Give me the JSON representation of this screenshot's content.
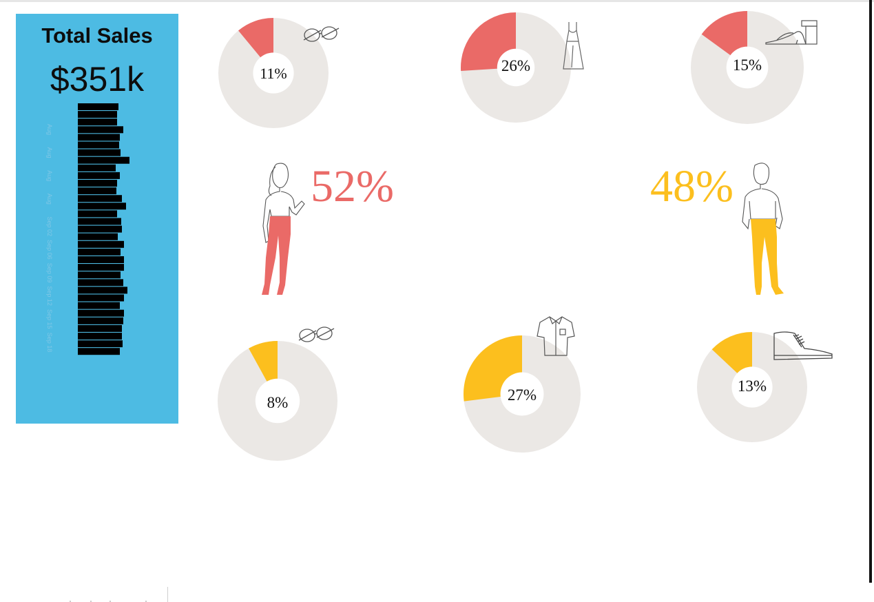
{
  "sales": {
    "title": "Total Sales",
    "value": "$351k",
    "bar_color": "#000000",
    "panel_color": "#4dbbe3"
  },
  "colors": {
    "women": "#ea6a67",
    "men": "#fcbf1e",
    "track": "#ebe8e5"
  },
  "women": {
    "share_label": "52%",
    "share": 52,
    "figure_icon": "woman-figure-icon",
    "categories": [
      {
        "name": "Glasses",
        "icon": "glasses-icon",
        "value": 11,
        "label": "11%"
      },
      {
        "name": "Dress",
        "icon": "dress-icon",
        "value": 26,
        "label": "26%"
      },
      {
        "name": "Sandal",
        "icon": "sandal-icon",
        "value": 15,
        "label": "15%"
      }
    ]
  },
  "men": {
    "share_label": "48%",
    "share": 48,
    "figure_icon": "man-figure-icon",
    "categories": [
      {
        "name": "Glasses",
        "icon": "glasses-icon",
        "value": 8,
        "label": "8%"
      },
      {
        "name": "Shirt",
        "icon": "shirt-icon",
        "value": 27,
        "label": "27%"
      },
      {
        "name": "Shoe",
        "icon": "shoe-icon",
        "value": 13,
        "label": "13%"
      }
    ]
  },
  "chart_data": [
    {
      "type": "bar",
      "orientation": "horizontal",
      "title": "Total Sales",
      "tick_labels": [
        "Aug",
        "Aug",
        "Aug",
        "Aug",
        "Sep 02",
        "Sep 06",
        "Sep 09",
        "Sep 12",
        "Sep 15",
        "Sep 18"
      ],
      "values": [
        59,
        57,
        57,
        66,
        61,
        60,
        62,
        75,
        55,
        61,
        57,
        56,
        64,
        70,
        57,
        63,
        64,
        58,
        67,
        62,
        67,
        67,
        62,
        66,
        72,
        67,
        61,
        67,
        66,
        64,
        64,
        65,
        61
      ],
      "xlim": [
        0,
        80
      ],
      "grid": false
    },
    {
      "type": "pie",
      "donut": true,
      "slices": [
        {
          "label": "11%",
          "value": 11
        },
        {
          "label": "",
          "value": 89
        }
      ]
    },
    {
      "type": "pie",
      "donut": true,
      "slices": [
        {
          "label": "26%",
          "value": 26
        },
        {
          "label": "",
          "value": 74
        }
      ]
    },
    {
      "type": "pie",
      "donut": true,
      "slices": [
        {
          "label": "15%",
          "value": 15
        },
        {
          "label": "",
          "value": 85
        }
      ]
    },
    {
      "type": "pie",
      "donut": true,
      "slices": [
        {
          "label": "8%",
          "value": 8
        },
        {
          "label": "",
          "value": 92
        }
      ]
    },
    {
      "type": "pie",
      "donut": true,
      "slices": [
        {
          "label": "27%",
          "value": 27
        },
        {
          "label": "",
          "value": 73
        }
      ]
    },
    {
      "type": "pie",
      "donut": true,
      "slices": [
        {
          "label": "13%",
          "value": 13
        },
        {
          "label": "",
          "value": 87
        }
      ]
    }
  ]
}
